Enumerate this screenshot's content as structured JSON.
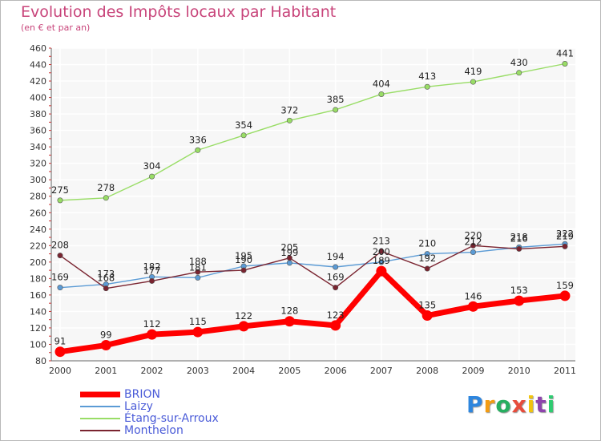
{
  "chart_data": {
    "type": "line",
    "title": "Evolution des Impôts locaux par Habitant",
    "subtitle": "(en € et par an)",
    "categories": [
      "2000",
      "2001",
      "2002",
      "2003",
      "2004",
      "2005",
      "2006",
      "2007",
      "2008",
      "2009",
      "2010",
      "2011"
    ],
    "yticks": [
      "80",
      "100",
      "120",
      "140",
      "160",
      "180",
      "200",
      "220",
      "240",
      "260",
      "280",
      "300",
      "320",
      "340",
      "360",
      "380",
      "400",
      "420",
      "440",
      "460"
    ],
    "ylim": [
      80,
      460
    ],
    "series": [
      {
        "name": "BRION",
        "color": "#ff0000",
        "values": [
          91,
          99,
          112,
          115,
          122,
          128,
          123,
          189,
          135,
          146,
          153,
          159
        ]
      },
      {
        "name": "Laizy",
        "color": "#5b9bd5",
        "values": [
          169,
          173,
          182,
          181,
          195,
          199,
          194,
          200,
          210,
          212,
          218,
          222
        ]
      },
      {
        "name": "Étang-sur-Arroux",
        "color": "#99dd66",
        "values": [
          275,
          278,
          304,
          336,
          354,
          372,
          385,
          404,
          413,
          419,
          430,
          441
        ]
      },
      {
        "name": "Monthelon",
        "color": "#7a2430",
        "values": [
          208,
          168,
          177,
          188,
          190,
          205,
          169,
          213,
          192,
          220,
          216,
          219
        ]
      }
    ]
  },
  "logo": {
    "text": "Proxiti",
    "letters": [
      "P",
      "r",
      "o",
      "x",
      "i",
      "t",
      "i"
    ],
    "colors": [
      "#2e86de",
      "#f39c12",
      "#27ae60",
      "#e74c3c",
      "#f1c40f",
      "#8e44ad",
      "#2ecc71"
    ]
  }
}
